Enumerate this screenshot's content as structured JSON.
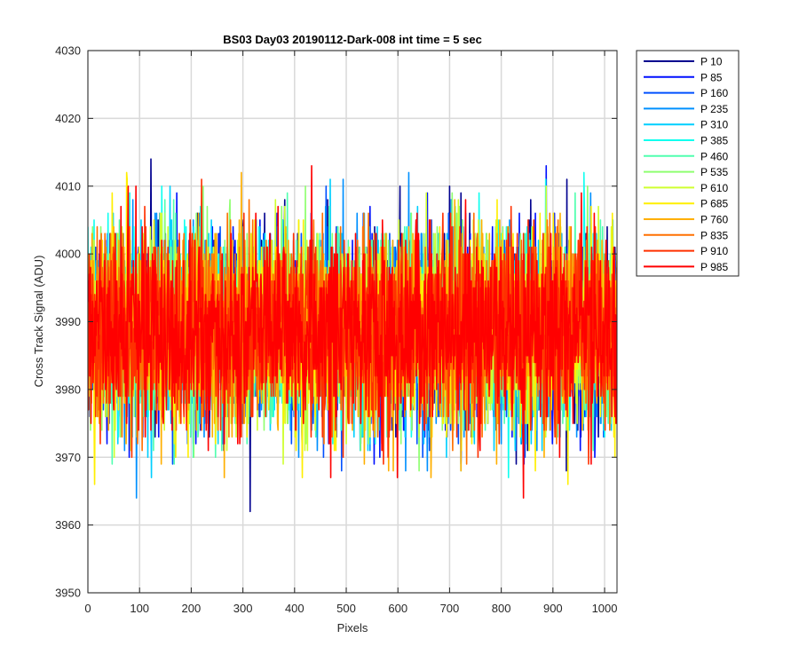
{
  "chart_data": {
    "type": "line",
    "title": "BS03 Day03 20190112-Dark-008 int time = 5 sec",
    "xlabel": "Pixels",
    "ylabel": "Cross Track Signal (ADU)",
    "xlim": [
      0,
      1024
    ],
    "ylim": [
      3950,
      4030
    ],
    "x_ticks": [
      0,
      100,
      200,
      300,
      400,
      500,
      600,
      700,
      800,
      900,
      1000
    ],
    "y_ticks": [
      3950,
      3960,
      3970,
      3980,
      3990,
      4000,
      4010,
      4020,
      4030
    ],
    "grid": true,
    "legend_position": "outside-right-top",
    "noise": {
      "x_start": 0,
      "x_end": 1024,
      "mean": 3989,
      "sd": 7,
      "min": 3956,
      "max": 4023
    },
    "series": [
      {
        "name": "P 10",
        "color": "#00008f"
      },
      {
        "name": "P 85",
        "color": "#0010ff"
      },
      {
        "name": "P 160",
        "color": "#0050ff"
      },
      {
        "name": "P 235",
        "color": "#0090ff"
      },
      {
        "name": "P 310",
        "color": "#00cfff"
      },
      {
        "name": "P 385",
        "color": "#10ffef"
      },
      {
        "name": "P 460",
        "color": "#50ffaf"
      },
      {
        "name": "P 535",
        "color": "#8fff70"
      },
      {
        "name": "P 610",
        "color": "#cfff30"
      },
      {
        "name": "P 685",
        "color": "#ffef00"
      },
      {
        "name": "P 760",
        "color": "#ffaf00"
      },
      {
        "name": "P 835",
        "color": "#ff7000"
      },
      {
        "name": "P 910",
        "color": "#ff3000"
      },
      {
        "name": "P 985",
        "color": "#ff0000"
      }
    ]
  }
}
